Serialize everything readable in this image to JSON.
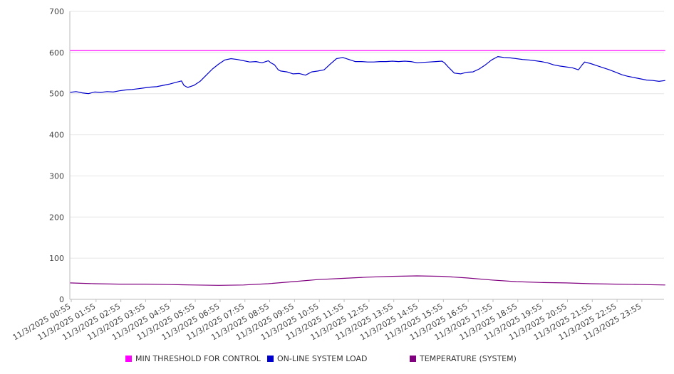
{
  "chart_data": {
    "type": "line",
    "title": "",
    "xlabel": "",
    "ylabel": "",
    "ylim": [
      0,
      700
    ],
    "yticks": [
      0,
      100,
      200,
      300,
      400,
      500,
      600,
      700
    ],
    "grid": true,
    "legend_position": "bottom",
    "x_tick_labels": [
      "11/3/2025 00:55",
      "11/3/2025 01:55",
      "11/3/2025 02:55",
      "11/3/2025 03:55",
      "11/3/2025 04:55",
      "11/3/2025 05:55",
      "11/3/2025 06:55",
      "11/3/2025 07:55",
      "11/3/2025 08:55",
      "11/3/2025 09:55",
      "11/3/2025 10:55",
      "11/3/2025 11:55",
      "11/3/2025 12:55",
      "11/3/2025 13:55",
      "11/3/2025 14:55",
      "11/3/2025 15:55",
      "11/3/2025 16:55",
      "11/3/2025 17:55",
      "11/3/2025 18:55",
      "11/3/2025 19:55",
      "11/3/2025 20:55",
      "11/3/2025 21:55",
      "11/3/2025 22:55",
      "11/3/2025 23:55"
    ],
    "series": [
      {
        "name": "MIN THRESHOLD FOR CONTROL",
        "color": "#ff00ff",
        "points": [
          [
            0,
            605
          ],
          [
            24,
            605
          ]
        ]
      },
      {
        "name": "ON-LINE SYSTEM LOAD",
        "color": "#0000cc",
        "points": [
          [
            0,
            503
          ],
          [
            0.25,
            505
          ],
          [
            0.5,
            502
          ],
          [
            0.75,
            500
          ],
          [
            1,
            504
          ],
          [
            1.25,
            503
          ],
          [
            1.5,
            505
          ],
          [
            1.75,
            504
          ],
          [
            2,
            507
          ],
          [
            2.25,
            509
          ],
          [
            2.5,
            510
          ],
          [
            2.75,
            512
          ],
          [
            3,
            514
          ],
          [
            3.25,
            516
          ],
          [
            3.5,
            517
          ],
          [
            3.75,
            520
          ],
          [
            4,
            523
          ],
          [
            4.25,
            527
          ],
          [
            4.5,
            531
          ],
          [
            4.6,
            520
          ],
          [
            4.75,
            515
          ],
          [
            5,
            520
          ],
          [
            5.25,
            530
          ],
          [
            5.5,
            545
          ],
          [
            5.75,
            560
          ],
          [
            6,
            572
          ],
          [
            6.25,
            582
          ],
          [
            6.5,
            585
          ],
          [
            6.75,
            583
          ],
          [
            7,
            580
          ],
          [
            7.25,
            577
          ],
          [
            7.5,
            578
          ],
          [
            7.75,
            575
          ],
          [
            8,
            580
          ],
          [
            8.1,
            575
          ],
          [
            8.25,
            570
          ],
          [
            8.4,
            558
          ],
          [
            8.5,
            555
          ],
          [
            8.75,
            553
          ],
          [
            9,
            548
          ],
          [
            9.25,
            549
          ],
          [
            9.5,
            545
          ],
          [
            9.75,
            553
          ],
          [
            10,
            555
          ],
          [
            10.25,
            558
          ],
          [
            10.5,
            572
          ],
          [
            10.75,
            585
          ],
          [
            11,
            588
          ],
          [
            11.25,
            583
          ],
          [
            11.5,
            578
          ],
          [
            11.75,
            578
          ],
          [
            12,
            577
          ],
          [
            12.25,
            577
          ],
          [
            12.5,
            578
          ],
          [
            12.75,
            578
          ],
          [
            13,
            579
          ],
          [
            13.25,
            578
          ],
          [
            13.5,
            579
          ],
          [
            13.75,
            578
          ],
          [
            14,
            575
          ],
          [
            14.25,
            576
          ],
          [
            14.5,
            577
          ],
          [
            14.75,
            578
          ],
          [
            15,
            579
          ],
          [
            15.1,
            575
          ],
          [
            15.25,
            565
          ],
          [
            15.5,
            550
          ],
          [
            15.75,
            548
          ],
          [
            16,
            552
          ],
          [
            16.25,
            553
          ],
          [
            16.5,
            560
          ],
          [
            16.75,
            570
          ],
          [
            17,
            582
          ],
          [
            17.25,
            590
          ],
          [
            17.5,
            588
          ],
          [
            17.75,
            587
          ],
          [
            18,
            585
          ],
          [
            18.25,
            583
          ],
          [
            18.5,
            582
          ],
          [
            18.75,
            580
          ],
          [
            19,
            578
          ],
          [
            19.25,
            575
          ],
          [
            19.5,
            570
          ],
          [
            19.75,
            567
          ],
          [
            20,
            565
          ],
          [
            20.25,
            563
          ],
          [
            20.5,
            558
          ],
          [
            20.65,
            570
          ],
          [
            20.75,
            577
          ],
          [
            21,
            573
          ],
          [
            21.25,
            568
          ],
          [
            21.5,
            563
          ],
          [
            21.75,
            558
          ],
          [
            22,
            552
          ],
          [
            22.25,
            546
          ],
          [
            22.5,
            542
          ],
          [
            22.75,
            539
          ],
          [
            23,
            536
          ],
          [
            23.25,
            533
          ],
          [
            23.5,
            532
          ],
          [
            23.75,
            530
          ],
          [
            24,
            532
          ]
        ]
      },
      {
        "name": "TEMPERATURE (SYSTEM)",
        "color": "#800080",
        "points": [
          [
            0,
            40
          ],
          [
            1,
            38
          ],
          [
            2,
            37
          ],
          [
            3,
            37
          ],
          [
            4,
            36
          ],
          [
            5,
            35
          ],
          [
            6,
            34
          ],
          [
            7,
            35
          ],
          [
            8,
            38
          ],
          [
            9,
            43
          ],
          [
            10,
            48
          ],
          [
            11,
            51
          ],
          [
            12,
            54
          ],
          [
            13,
            56
          ],
          [
            14,
            57
          ],
          [
            15,
            56
          ],
          [
            16,
            52
          ],
          [
            17,
            47
          ],
          [
            18,
            43
          ],
          [
            19,
            41
          ],
          [
            20,
            40
          ],
          [
            21,
            38
          ],
          [
            22,
            37
          ],
          [
            23,
            36
          ],
          [
            24,
            35
          ]
        ]
      }
    ]
  },
  "legend": {
    "items": [
      {
        "label": "MIN THRESHOLD FOR CONTROL",
        "color": "#ff00ff"
      },
      {
        "label": "ON-LINE SYSTEM LOAD",
        "color": "#0000cc"
      },
      {
        "label": "TEMPERATURE (SYSTEM)",
        "color": "#800080"
      }
    ]
  }
}
